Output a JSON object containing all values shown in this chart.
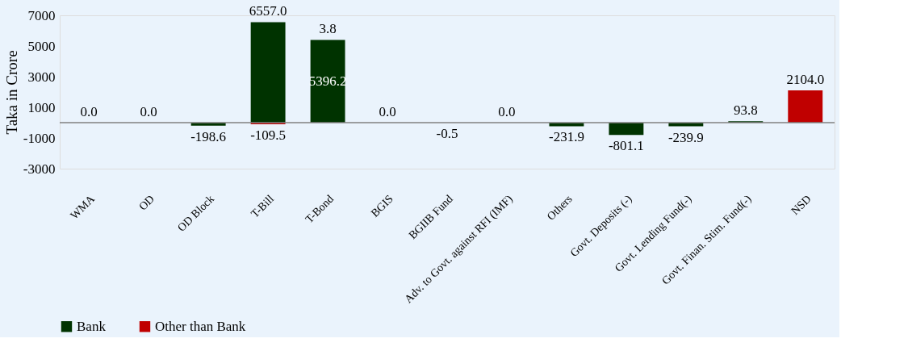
{
  "chart_data": {
    "type": "bar",
    "stacked": true,
    "ylabel": "Taka in Crore",
    "categories": [
      "WMA",
      "OD",
      "OD Block",
      "T-Bill",
      "T-Bond",
      "BGIS",
      "BGIIB Fund",
      "Adv. to Govt. against RFI (IMF)",
      "Others",
      "Govt. Deposits (-)",
      "Govt. Lending Fund(-)",
      "Govt. Finan. Stim. Fund(-)",
      "NSD"
    ],
    "series": [
      {
        "name": "Bank",
        "color": "#003300",
        "values": [
          0.0,
          0.0,
          -198.6,
          6557.0,
          5396.2,
          0.0,
          -0.5,
          0.0,
          -231.9,
          -801.1,
          -239.9,
          93.8,
          null
        ],
        "value_labels": [
          "0.0",
          "0.0",
          "-198.6",
          "6557.0",
          "5396.2",
          "0.0",
          "-0.5",
          "0.0",
          "-231.9",
          "-801.1",
          "-239.9",
          "93.8",
          null
        ]
      },
      {
        "name": "Other than Bank",
        "color": "#c00000",
        "values": [
          null,
          null,
          null,
          -109.5,
          3.8,
          null,
          null,
          null,
          null,
          null,
          null,
          null,
          2104.0
        ],
        "value_labels": [
          null,
          null,
          null,
          "-109.5",
          "3.8",
          null,
          null,
          null,
          null,
          null,
          null,
          null,
          "2104.0"
        ]
      }
    ],
    "ylim": [
      -3000,
      7000
    ],
    "yticks": [
      -3000,
      -1000,
      1000,
      3000,
      5000,
      7000
    ],
    "grid": false,
    "legend": "bottom left"
  }
}
